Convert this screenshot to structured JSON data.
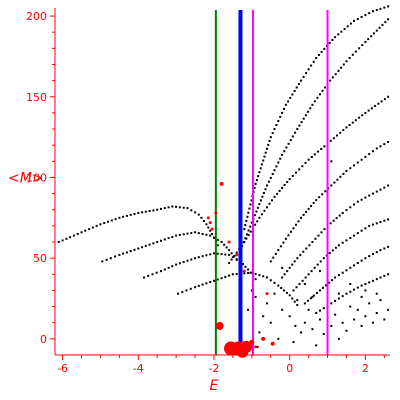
{
  "chart_data": {
    "type": "scatter",
    "xlabel": "E",
    "ylabel": "<M>",
    "xlim": [
      -6.2,
      2.65
    ],
    "ylim": [
      -10,
      205
    ],
    "x_ticks": [
      -6,
      -4,
      -2,
      0,
      2
    ],
    "y_ticks": [
      0,
      50,
      100,
      150,
      200
    ],
    "grid": false,
    "colors": {
      "axis": "#ff0000",
      "points": "#000000",
      "red_points": "#ff0000",
      "green_line": "#008000",
      "blue_line": "#0000ff",
      "magenta_line": "#ff00ff"
    },
    "vertical_lines": [
      {
        "x": -1.95,
        "color": "green"
      },
      {
        "x": -1.3,
        "color": "blue"
      },
      {
        "x": -0.97,
        "color": "magenta"
      },
      {
        "x": 1.0,
        "color": "magenta"
      }
    ],
    "series": [
      {
        "style": "dotted-curve",
        "points": [
          [
            -6.1,
            60
          ],
          [
            -5.5,
            66
          ],
          [
            -5.0,
            71
          ],
          [
            -4.5,
            75
          ],
          [
            -4.0,
            78
          ],
          [
            -3.5,
            80
          ],
          [
            -3.1,
            82
          ],
          [
            -2.7,
            81
          ],
          [
            -2.4,
            77
          ],
          [
            -2.2,
            71
          ],
          [
            -2.05,
            65
          ],
          [
            -1.9,
            58
          ]
        ]
      },
      {
        "style": "dotted-curve",
        "points": [
          [
            -4.95,
            48
          ],
          [
            -4.5,
            52
          ],
          [
            -4.0,
            56
          ],
          [
            -3.5,
            60
          ],
          [
            -3.0,
            64
          ],
          [
            -2.5,
            66
          ],
          [
            -2.1,
            64
          ],
          [
            -1.8,
            60
          ],
          [
            -1.6,
            55
          ],
          [
            -1.4,
            49
          ]
        ]
      },
      {
        "style": "dotted-curve",
        "points": [
          [
            -3.85,
            38
          ],
          [
            -3.4,
            42
          ],
          [
            -3.0,
            46
          ],
          [
            -2.5,
            50
          ],
          [
            -2.0,
            53
          ],
          [
            -1.6,
            52
          ],
          [
            -1.3,
            48
          ],
          [
            -1.1,
            43
          ],
          [
            -0.9,
            37
          ]
        ]
      },
      {
        "style": "dotted-curve",
        "points": [
          [
            -2.95,
            28
          ],
          [
            -2.5,
            32
          ],
          [
            -2.0,
            36
          ],
          [
            -1.5,
            40
          ],
          [
            -1.0,
            41
          ],
          [
            -0.6,
            38
          ],
          [
            -0.3,
            33
          ],
          [
            0.0,
            27
          ],
          [
            0.2,
            21
          ]
        ]
      },
      {
        "style": "dotted-curve",
        "points": [
          [
            -1.6,
            47
          ],
          [
            -1.2,
            60
          ],
          [
            -0.8,
            75
          ],
          [
            -0.4,
            88
          ],
          [
            0.0,
            99
          ],
          [
            0.5,
            111
          ],
          [
            1.0,
            121
          ],
          [
            1.5,
            131
          ],
          [
            2.0,
            140
          ],
          [
            2.6,
            150
          ]
        ]
      },
      {
        "style": "dotted-curve",
        "points": [
          [
            -1.3,
            55
          ],
          [
            -1.0,
            72
          ],
          [
            -0.6,
            95
          ],
          [
            -0.2,
            114
          ],
          [
            0.2,
            130
          ],
          [
            0.6,
            145
          ],
          [
            1.0,
            158
          ],
          [
            1.5,
            172
          ],
          [
            2.0,
            184
          ],
          [
            2.6,
            198
          ]
        ]
      },
      {
        "style": "dotted-curve",
        "points": [
          [
            -1.2,
            68
          ],
          [
            -0.9,
            96
          ],
          [
            -0.5,
            125
          ],
          [
            -0.1,
            145
          ],
          [
            0.3,
            160
          ],
          [
            0.7,
            174
          ],
          [
            1.2,
            187
          ],
          [
            1.7,
            197
          ],
          [
            2.2,
            203
          ],
          [
            2.6,
            206
          ]
        ]
      },
      {
        "style": "dotted-curve",
        "points": [
          [
            -0.5,
            48
          ],
          [
            -0.1,
            62
          ],
          [
            0.3,
            75
          ],
          [
            0.7,
            86
          ],
          [
            1.1,
            95
          ],
          [
            1.5,
            104
          ],
          [
            1.9,
            111
          ],
          [
            2.3,
            118
          ],
          [
            2.6,
            122
          ]
        ]
      },
      {
        "style": "dotted-curve",
        "points": [
          [
            -0.2,
            38
          ],
          [
            0.2,
            50
          ],
          [
            0.6,
            60
          ],
          [
            1.0,
            70
          ],
          [
            1.4,
            78
          ],
          [
            1.8,
            85
          ],
          [
            2.2,
            90
          ],
          [
            2.6,
            95
          ]
        ]
      },
      {
        "style": "dotted-curve",
        "points": [
          [
            0.1,
            30
          ],
          [
            0.5,
            40
          ],
          [
            0.9,
            50
          ],
          [
            1.3,
            58
          ],
          [
            1.7,
            64
          ],
          [
            2.1,
            70
          ],
          [
            2.6,
            74
          ]
        ]
      },
      {
        "style": "dotted-curve",
        "points": [
          [
            0.4,
            22
          ],
          [
            0.8,
            30
          ],
          [
            1.2,
            38
          ],
          [
            1.6,
            44
          ],
          [
            2.0,
            50
          ],
          [
            2.4,
            55
          ],
          [
            2.6,
            57
          ]
        ]
      },
      {
        "style": "dotted-curve",
        "points": [
          [
            0.7,
            16
          ],
          [
            1.1,
            22
          ],
          [
            1.5,
            28
          ],
          [
            1.9,
            33
          ],
          [
            2.3,
            37
          ],
          [
            2.6,
            40
          ]
        ]
      }
    ],
    "scattered_points": [
      [
        -0.9,
        26
      ],
      [
        -0.6,
        22
      ],
      [
        -0.4,
        28
      ],
      [
        -0.2,
        18
      ],
      [
        0.0,
        14
      ],
      [
        0.2,
        24
      ],
      [
        0.4,
        10
      ],
      [
        0.5,
        18
      ],
      [
        0.6,
        6
      ],
      [
        0.8,
        12
      ],
      [
        0.9,
        3
      ],
      [
        1.1,
        8
      ],
      [
        1.2,
        15
      ],
      [
        1.3,
        0
      ],
      [
        1.4,
        10
      ],
      [
        1.5,
        5
      ],
      [
        1.6,
        20
      ],
      [
        1.7,
        12
      ],
      [
        1.8,
        18
      ],
      [
        1.9,
        8
      ],
      [
        2.0,
        14
      ],
      [
        2.1,
        22
      ],
      [
        2.2,
        10
      ],
      [
        2.3,
        16
      ],
      [
        2.4,
        24
      ],
      [
        2.5,
        12
      ],
      [
        2.6,
        18
      ],
      [
        -0.8,
        4
      ],
      [
        -0.5,
        10
      ],
      [
        -0.3,
        0
      ],
      [
        0.1,
        -2
      ],
      [
        0.3,
        4
      ],
      [
        0.7,
        -4
      ],
      [
        1.0,
        20
      ],
      [
        1.0,
        36
      ],
      [
        0.8,
        42
      ],
      [
        1.3,
        28
      ],
      [
        1.6,
        34
      ],
      [
        2.0,
        30
      ],
      [
        2.3,
        28
      ],
      [
        -1.1,
        18
      ],
      [
        -0.7,
        14
      ],
      [
        -1.0,
        30
      ],
      [
        -0.2,
        44
      ],
      [
        0.4,
        34
      ],
      [
        1.1,
        110
      ],
      [
        -0.85,
        -5
      ],
      [
        0.15,
        8
      ],
      [
        0.6,
        26
      ],
      [
        1.9,
        26
      ]
    ],
    "red_points": [
      {
        "x": -1.95,
        "y": 78,
        "size": 1.5
      },
      {
        "x": -2.1,
        "y": 72,
        "size": 1.5
      },
      {
        "x": -2.05,
        "y": 68,
        "size": 1.5
      },
      {
        "x": -2.15,
        "y": 75,
        "size": 1.5
      },
      {
        "x": -1.8,
        "y": 96,
        "size": 2
      },
      {
        "x": -1.6,
        "y": 60,
        "size": 1.5
      },
      {
        "x": -1.4,
        "y": 52,
        "size": 1.5
      },
      {
        "x": -1.85,
        "y": 8,
        "size": 4
      },
      {
        "x": -1.2,
        "y": 42,
        "size": 1.5
      },
      {
        "x": -0.6,
        "y": 28,
        "size": 1.5
      },
      {
        "x": -0.7,
        "y": 0,
        "size": 2
      },
      {
        "x": -0.45,
        "y": -3,
        "size": 2
      },
      {
        "x": -0.9,
        "y": -5,
        "size": 1.5
      },
      {
        "x": -1.0,
        "y": -2,
        "size": 2.5
      },
      {
        "x": -1.15,
        "y": -5,
        "size": 6
      },
      {
        "x": -1.35,
        "y": -6,
        "size": 7
      },
      {
        "x": -1.55,
        "y": -6,
        "size": 7
      },
      {
        "x": -1.25,
        "y": -8,
        "size": 6
      }
    ]
  }
}
